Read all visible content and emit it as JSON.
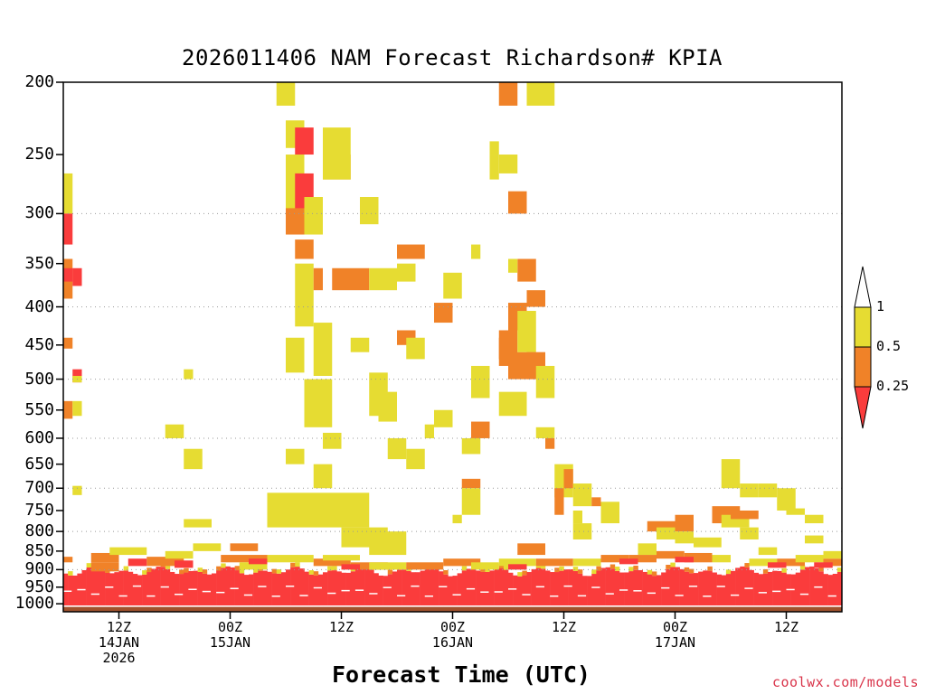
{
  "chart_data": {
    "type": "heatmap",
    "title": "2026011406 NAM Forecast Richardson# KPIA",
    "xlabel": "Forecast Time (UTC)",
    "ylabel": "",
    "credit": "coolwx.com/models",
    "y_axis": {
      "scale": "pressure (hPa), log, inverted",
      "range": [
        1025,
        200
      ],
      "ticks": [
        200,
        250,
        300,
        350,
        400,
        450,
        500,
        550,
        600,
        650,
        700,
        750,
        800,
        850,
        900,
        950,
        1000
      ],
      "dotted_gridlines": [
        300,
        400,
        500,
        600,
        700,
        800,
        900
      ]
    },
    "x_axis": {
      "units": "forecast hour from 2026011406",
      "range": [
        0,
        84
      ],
      "ticks": [
        {
          "hour": 6,
          "label": "12Z",
          "sub": "14JAN",
          "sub2": "2026"
        },
        {
          "hour": 18,
          "label": "00Z",
          "sub": "15JAN",
          "sub2": ""
        },
        {
          "hour": 30,
          "label": "12Z",
          "sub": "",
          "sub2": ""
        },
        {
          "hour": 42,
          "label": "00Z",
          "sub": "16JAN",
          "sub2": ""
        },
        {
          "hour": 54,
          "label": "12Z",
          "sub": "",
          "sub2": ""
        },
        {
          "hour": 66,
          "label": "00Z",
          "sub": "17JAN",
          "sub2": ""
        },
        {
          "hour": 78,
          "label": "12Z",
          "sub": "",
          "sub2": ""
        }
      ]
    },
    "legend": {
      "placement": "right",
      "labels": [
        "1",
        "0.5",
        "0.25"
      ],
      "colors": {
        "0.5-1": "#e6dc32",
        "0.25-0.5": "#f08228",
        "<0.25": "#fa3c3c",
        "ground": "#a0522d"
      }
    },
    "surface_pressure_hPa": 1010,
    "cells": [
      [
        0,
        0,
        265,
        300,
        1
      ],
      [
        0,
        0,
        300,
        330,
        2
      ],
      [
        0,
        0,
        345,
        390,
        3
      ],
      [
        0,
        1,
        355,
        370,
        2
      ],
      [
        0,
        0,
        440,
        455,
        3
      ],
      [
        0,
        0,
        535,
        565,
        3
      ],
      [
        0,
        0,
        865,
        880,
        3
      ],
      [
        1,
        2,
        355,
        375,
        2
      ],
      [
        1,
        2,
        485,
        505,
        2
      ],
      [
        1,
        1,
        495,
        505,
        1
      ],
      [
        1,
        2,
        535,
        560,
        1
      ],
      [
        1,
        2,
        695,
        715,
        1
      ],
      [
        13,
        14,
        485,
        500,
        1
      ],
      [
        11,
        13,
        575,
        600,
        1
      ],
      [
        13,
        15,
        620,
        660,
        1
      ],
      [
        13,
        16,
        770,
        790,
        1
      ],
      [
        23,
        25,
        200,
        215,
        1
      ],
      [
        24,
        26,
        225,
        245,
        1
      ],
      [
        25,
        27,
        230,
        250,
        2
      ],
      [
        24,
        26,
        250,
        310,
        1
      ],
      [
        25,
        27,
        265,
        300,
        2
      ],
      [
        24,
        26,
        295,
        320,
        3
      ],
      [
        26,
        28,
        285,
        320,
        1
      ],
      [
        25,
        27,
        325,
        345,
        3
      ],
      [
        25,
        27,
        350,
        425,
        1
      ],
      [
        27,
        28,
        355,
        380,
        3
      ],
      [
        29,
        33,
        355,
        380,
        3
      ],
      [
        33,
        36,
        355,
        380,
        1
      ],
      [
        27,
        29,
        420,
        495,
        1
      ],
      [
        24,
        26,
        440,
        490,
        1
      ],
      [
        26,
        29,
        500,
        580,
        1
      ],
      [
        28,
        30,
        590,
        620,
        1
      ],
      [
        24,
        26,
        620,
        650,
        1
      ],
      [
        27,
        29,
        650,
        700,
        1
      ],
      [
        22,
        33,
        710,
        790,
        1
      ],
      [
        30,
        35,
        790,
        840,
        1
      ],
      [
        33,
        37,
        800,
        860,
        1
      ],
      [
        28,
        31,
        250,
        270,
        3
      ],
      [
        28,
        31,
        230,
        270,
        1
      ],
      [
        32,
        34,
        285,
        310,
        1
      ],
      [
        31,
        33,
        440,
        460,
        1
      ],
      [
        33,
        35,
        490,
        560,
        1
      ],
      [
        34,
        36,
        520,
        570,
        1
      ],
      [
        36,
        39,
        330,
        345,
        3
      ],
      [
        36,
        38,
        350,
        370,
        1
      ],
      [
        36,
        38,
        430,
        450,
        3
      ],
      [
        37,
        39,
        440,
        470,
        1
      ],
      [
        39,
        40,
        575,
        600,
        1
      ],
      [
        35,
        37,
        600,
        640,
        1
      ],
      [
        37,
        39,
        620,
        660,
        1
      ],
      [
        40,
        42,
        395,
        420,
        3
      ],
      [
        41,
        43,
        360,
        390,
        1
      ],
      [
        44,
        45,
        330,
        345,
        1
      ],
      [
        44,
        46,
        480,
        530,
        1
      ],
      [
        40,
        42,
        550,
        580,
        1
      ],
      [
        43,
        45,
        600,
        630,
        1
      ],
      [
        43,
        45,
        680,
        700,
        3
      ],
      [
        43,
        45,
        700,
        760,
        1
      ],
      [
        42,
        43,
        760,
        780,
        1
      ],
      [
        44,
        46,
        570,
        600,
        3
      ],
      [
        47,
        49,
        430,
        480,
        3
      ],
      [
        48,
        50,
        395,
        430,
        3
      ],
      [
        48,
        51,
        460,
        500,
        3
      ],
      [
        47,
        50,
        520,
        560,
        1
      ],
      [
        49,
        51,
        405,
        460,
        1
      ],
      [
        50,
        52,
        380,
        400,
        3
      ],
      [
        47,
        49,
        250,
        265,
        1
      ],
      [
        46,
        47,
        250,
        270,
        1
      ],
      [
        48,
        50,
        280,
        300,
        3
      ],
      [
        47,
        49,
        200,
        215,
        3
      ],
      [
        50,
        53,
        200,
        215,
        1
      ],
      [
        46,
        47,
        240,
        250,
        1
      ],
      [
        49,
        51,
        345,
        370,
        3
      ],
      [
        48,
        49,
        345,
        360,
        1
      ],
      [
        47,
        48,
        440,
        470,
        3
      ],
      [
        50,
        52,
        460,
        500,
        3
      ],
      [
        51,
        53,
        480,
        530,
        1
      ],
      [
        51,
        53,
        580,
        600,
        1
      ],
      [
        52,
        53,
        600,
        620,
        3
      ],
      [
        53,
        55,
        650,
        720,
        1
      ],
      [
        54,
        55,
        660,
        700,
        3
      ],
      [
        55,
        57,
        690,
        740,
        1
      ],
      [
        53,
        54,
        700,
        760,
        3
      ],
      [
        57,
        58,
        720,
        740,
        3
      ],
      [
        49,
        52,
        830,
        860,
        3
      ],
      [
        55,
        56,
        750,
        780,
        1
      ],
      [
        58,
        60,
        730,
        780,
        1
      ],
      [
        55,
        57,
        780,
        820,
        1
      ],
      [
        63,
        66,
        775,
        800,
        3
      ],
      [
        64,
        66,
        790,
        820,
        1
      ],
      [
        66,
        68,
        760,
        800,
        3
      ],
      [
        66,
        68,
        800,
        830,
        1
      ],
      [
        70,
        73,
        740,
        780,
        3
      ],
      [
        71,
        74,
        760,
        790,
        1
      ],
      [
        72,
        75,
        750,
        770,
        3
      ],
      [
        71,
        73,
        640,
        700,
        1
      ],
      [
        73,
        75,
        690,
        720,
        1
      ],
      [
        75,
        77,
        690,
        720,
        1
      ],
      [
        78,
        80,
        745,
        760,
        1
      ],
      [
        77,
        79,
        700,
        750,
        1
      ],
      [
        80,
        82,
        760,
        780,
        1
      ],
      [
        80,
        82,
        810,
        830,
        1
      ],
      [
        73,
        75,
        790,
        820,
        1
      ],
      [
        75,
        77,
        840,
        860,
        1
      ],
      [
        68,
        71,
        815,
        840,
        1
      ],
      [
        62,
        64,
        830,
        860,
        1
      ],
      [
        3,
        6,
        855,
        880,
        3
      ],
      [
        5,
        9,
        840,
        860,
        1
      ],
      [
        9,
        13,
        865,
        890,
        3
      ],
      [
        11,
        14,
        850,
        870,
        1
      ],
      [
        14,
        17,
        830,
        850,
        1
      ],
      [
        17,
        22,
        860,
        880,
        3
      ],
      [
        18,
        21,
        830,
        850,
        3
      ],
      [
        19,
        22,
        880,
        900,
        1
      ],
      [
        22,
        27,
        860,
        880,
        1
      ],
      [
        27,
        31,
        870,
        890,
        3
      ],
      [
        28,
        32,
        860,
        875,
        1
      ],
      [
        31,
        35,
        880,
        900,
        3
      ],
      [
        33,
        37,
        880,
        900,
        1
      ],
      [
        37,
        41,
        880,
        900,
        3
      ],
      [
        41,
        45,
        870,
        890,
        3
      ],
      [
        44,
        47,
        880,
        900,
        1
      ],
      [
        47,
        51,
        870,
        890,
        1
      ],
      [
        51,
        55,
        870,
        890,
        3
      ],
      [
        55,
        58,
        870,
        890,
        1
      ],
      [
        58,
        61,
        860,
        880,
        3
      ],
      [
        61,
        64,
        860,
        880,
        3
      ],
      [
        64,
        67,
        850,
        870,
        3
      ],
      [
        67,
        70,
        855,
        880,
        3
      ],
      [
        70,
        72,
        860,
        880,
        1
      ],
      [
        74,
        77,
        870,
        890,
        1
      ],
      [
        77,
        80,
        870,
        890,
        3
      ],
      [
        79,
        82,
        860,
        880,
        1
      ],
      [
        82,
        84,
        870,
        890,
        3
      ],
      [
        82,
        84,
        850,
        870,
        1
      ],
      [
        3,
        6,
        880,
        905,
        3
      ],
      [
        7,
        9,
        870,
        890,
        2
      ],
      [
        12,
        14,
        875,
        895,
        2
      ],
      [
        20,
        22,
        870,
        885,
        2
      ],
      [
        30,
        32,
        885,
        900,
        2
      ],
      [
        48,
        50,
        885,
        900,
        2
      ],
      [
        60,
        62,
        870,
        885,
        2
      ],
      [
        66,
        68,
        865,
        880,
        2
      ],
      [
        76,
        78,
        880,
        895,
        2
      ],
      [
        81,
        83,
        880,
        895,
        2
      ]
    ]
  }
}
